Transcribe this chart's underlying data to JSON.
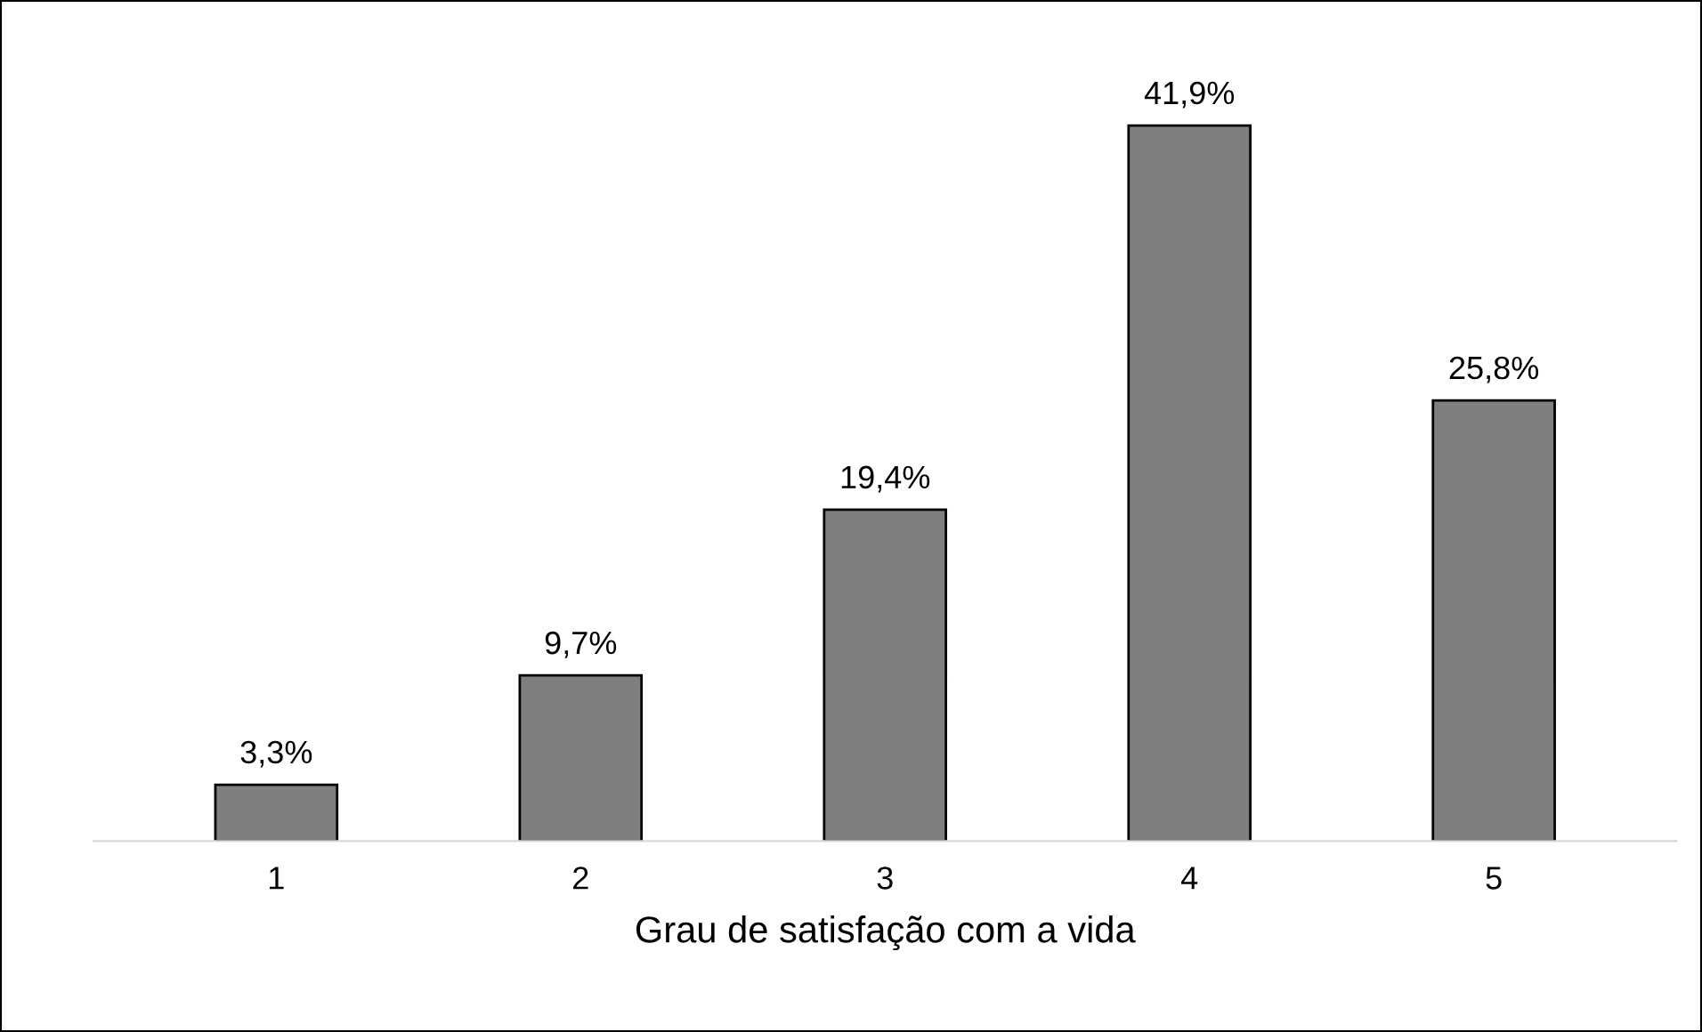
{
  "chart_data": {
    "type": "bar",
    "xlabel": "Grau de satisfação com a vida",
    "categories": [
      "1",
      "2",
      "3",
      "4",
      "5"
    ],
    "values": [
      3.3,
      9.7,
      19.4,
      41.9,
      25.8
    ],
    "value_labels": [
      "3,3%",
      "9,7%",
      "19,4%",
      "41,9%",
      "25,8%"
    ],
    "color": "#7f7f7f",
    "grid": false,
    "legend": false
  }
}
